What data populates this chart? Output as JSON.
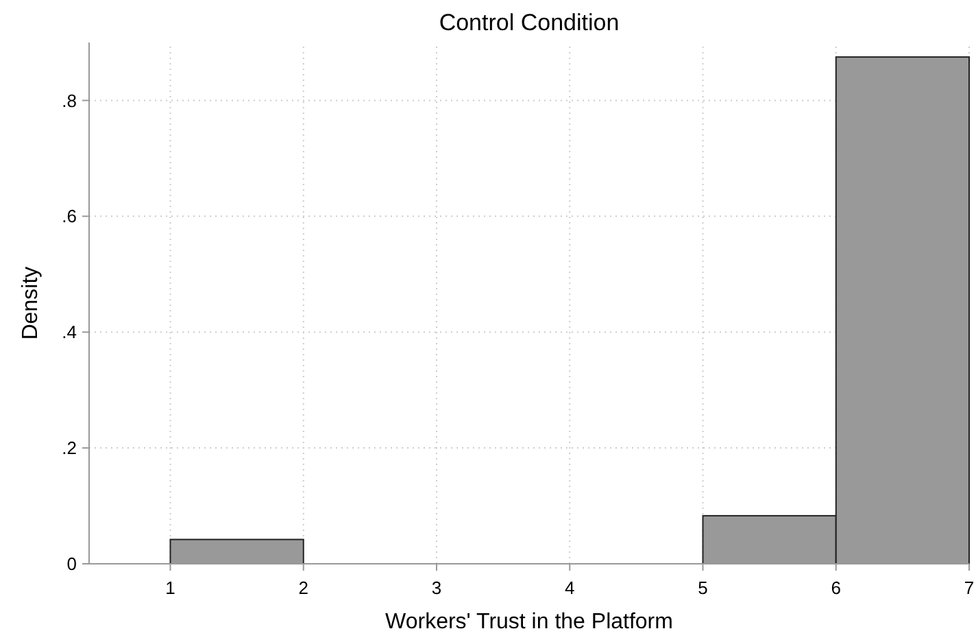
{
  "chart_data": {
    "type": "histogram",
    "title": "Control Condition",
    "xlabel": "Workers' Trust in the Platform",
    "ylabel": "Density",
    "bins": [
      1,
      2,
      3,
      4,
      5,
      6,
      7
    ],
    "values": [
      0.042,
      0,
      0,
      0,
      0.083,
      0.875
    ],
    "color": "#999999",
    "xlim": [
      0.39,
      7
    ],
    "xticks": [
      1,
      2,
      3,
      4,
      5,
      6,
      7
    ],
    "ylim": [
      0,
      0.9
    ],
    "yticks": [
      {
        "value": 0,
        "label": "0"
      },
      {
        "value": 0.2,
        "label": ".2"
      },
      {
        "value": 0.4,
        "label": ".4"
      },
      {
        "value": 0.6,
        "label": ".6"
      },
      {
        "value": 0.8,
        "label": ".8"
      }
    ],
    "grid": true
  }
}
